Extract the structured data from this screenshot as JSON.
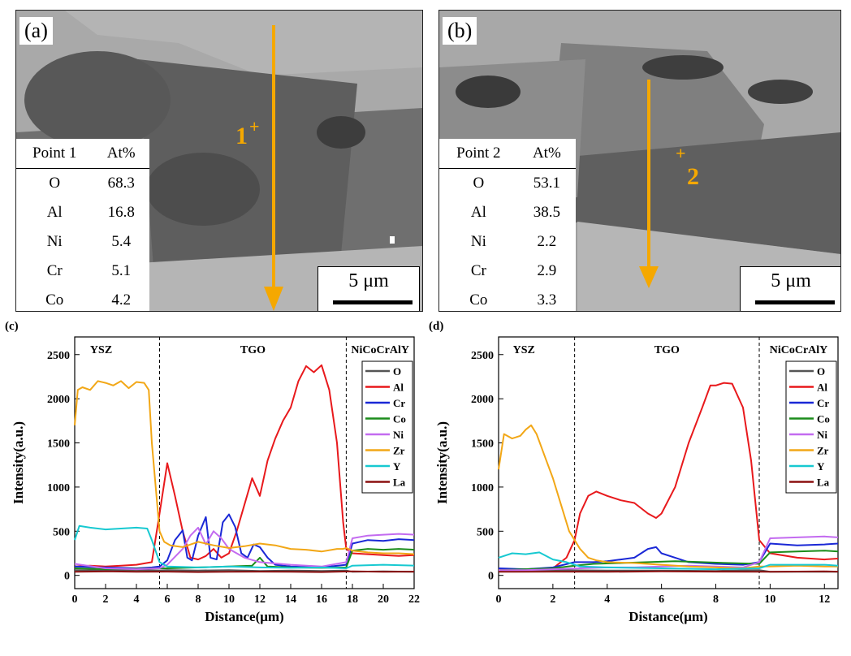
{
  "panel_a": {
    "tag": "(a)",
    "point_label": "1",
    "table": {
      "header": [
        "Point 1",
        "At%"
      ],
      "rows": [
        [
          "O",
          "68.3"
        ],
        [
          "Al",
          "16.8"
        ],
        [
          "Ni",
          "5.4"
        ],
        [
          "Cr",
          "5.1"
        ],
        [
          "Co",
          "4.2"
        ]
      ]
    },
    "scale": "5 μm"
  },
  "panel_b": {
    "tag": "(b)",
    "point_label": "2",
    "table": {
      "header": [
        "Point  2",
        "At%"
      ],
      "rows": [
        [
          "O",
          "53.1"
        ],
        [
          "Al",
          "38.5"
        ],
        [
          "Ni",
          "2.2"
        ],
        [
          "Cr",
          "2.9"
        ],
        [
          "Co",
          "3.3"
        ]
      ]
    },
    "scale": "5 μm"
  },
  "colors": {
    "O": "#555555",
    "Al": "#e8191c",
    "Cr": "#1a28d6",
    "Co": "#1b8c1b",
    "Ni": "#c36bf0",
    "Zr": "#f2a716",
    "Y": "#17c9d1",
    "La": "#8b1010",
    "arrow": "#f5a800"
  },
  "chart_data": [
    {
      "type": "line",
      "tag": "(c)",
      "xlabel": "Distance(μm)",
      "ylabel": "Intensity(a.u.)",
      "xlim": [
        0,
        22
      ],
      "ylim": [
        -150,
        2700
      ],
      "xticks": [
        0,
        2,
        4,
        6,
        8,
        10,
        12,
        14,
        16,
        18,
        20,
        22
      ],
      "yticks": [
        0,
        500,
        1000,
        1500,
        2000,
        2500
      ],
      "regions": [
        "YSZ",
        "TGO",
        "NiCoCrAlY"
      ],
      "region_bounds": [
        5.5,
        17.6
      ],
      "legend": [
        "O",
        "Al",
        "Cr",
        "Co",
        "Ni",
        "Zr",
        "Y",
        "La"
      ],
      "series": [
        {
          "name": "O",
          "x": [
            0,
            2,
            4,
            5.5,
            6,
            8,
            10,
            12,
            14,
            16,
            17.6,
            18,
            20,
            22
          ],
          "y": [
            60,
            55,
            60,
            55,
            60,
            55,
            60,
            50,
            55,
            50,
            55,
            40,
            45,
            40
          ]
        },
        {
          "name": "Al",
          "x": [
            0,
            1,
            2,
            3,
            4,
            5,
            5.5,
            6,
            6.5,
            7,
            7.5,
            8,
            8.5,
            9,
            9.5,
            10,
            10.5,
            11,
            11.5,
            12,
            12.5,
            13,
            13.5,
            14,
            14.5,
            15,
            15.5,
            16,
            16.5,
            17,
            17.4,
            17.6,
            18,
            19,
            20,
            21,
            22
          ],
          "y": [
            100,
            110,
            100,
            110,
            120,
            150,
            700,
            1270,
            900,
            500,
            200,
            180,
            220,
            300,
            200,
            250,
            500,
            800,
            1100,
            900,
            1300,
            1550,
            1750,
            1900,
            2200,
            2370,
            2300,
            2380,
            2100,
            1500,
            600,
            300,
            250,
            240,
            230,
            220,
            230
          ]
        },
        {
          "name": "Cr",
          "x": [
            0,
            2,
            4,
            5,
            5.5,
            6,
            6.5,
            7,
            7.3,
            7.6,
            8,
            8.5,
            8.8,
            9.2,
            9.6,
            10,
            10.4,
            10.8,
            11.2,
            11.6,
            12,
            12.5,
            13,
            14,
            16,
            17.6,
            18,
            19,
            20,
            21,
            22
          ],
          "y": [
            100,
            90,
            80,
            90,
            100,
            170,
            400,
            510,
            200,
            170,
            450,
            660,
            200,
            180,
            600,
            690,
            550,
            250,
            200,
            350,
            320,
            200,
            120,
            100,
            90,
            120,
            360,
            400,
            390,
            410,
            400
          ]
        },
        {
          "name": "Co",
          "x": [
            0,
            2,
            4,
            6,
            8,
            10,
            11.5,
            12,
            12.5,
            14,
            16,
            17.6,
            18,
            19,
            20,
            21,
            22
          ],
          "y": [
            80,
            70,
            75,
            80,
            90,
            100,
            110,
            200,
            100,
            90,
            85,
            90,
            280,
            300,
            290,
            300,
            290
          ]
        },
        {
          "name": "Ni",
          "x": [
            0,
            2,
            4,
            5.5,
            6,
            7,
            7.5,
            8,
            8.5,
            9,
            9.5,
            10,
            11,
            12,
            14,
            16,
            17.6,
            18,
            19,
            20,
            21,
            22
          ],
          "y": [
            130,
            80,
            70,
            80,
            120,
            300,
            450,
            540,
            350,
            500,
            420,
            300,
            200,
            150,
            120,
            100,
            150,
            420,
            450,
            460,
            470,
            460
          ]
        },
        {
          "name": "Zr",
          "x": [
            0,
            0.2,
            0.5,
            1,
            1.5,
            2,
            2.5,
            3,
            3.5,
            4,
            4.5,
            4.8,
            5,
            5.3,
            5.5,
            5.8,
            6.2,
            7,
            8,
            9,
            10,
            11,
            12,
            13,
            14,
            15,
            16,
            17,
            17.4,
            17.6,
            18,
            19,
            20,
            21,
            22
          ],
          "y": [
            1700,
            2100,
            2130,
            2100,
            2200,
            2180,
            2150,
            2200,
            2120,
            2190,
            2180,
            2100,
            1500,
            900,
            500,
            380,
            340,
            320,
            380,
            340,
            310,
            330,
            360,
            340,
            300,
            290,
            270,
            300,
            300,
            310,
            280,
            260,
            250,
            250,
            240
          ]
        },
        {
          "name": "Y",
          "x": [
            0,
            0.3,
            1,
            2,
            3,
            4,
            4.7,
            5,
            5.5,
            6,
            8,
            10,
            12,
            14,
            16,
            17.6,
            18,
            20,
            22
          ],
          "y": [
            400,
            560,
            540,
            520,
            530,
            540,
            530,
            400,
            150,
            100,
            90,
            100,
            90,
            85,
            90,
            80,
            110,
            120,
            110
          ]
        },
        {
          "name": "La",
          "x": [
            0,
            2,
            4,
            6,
            8,
            10,
            12,
            14,
            16,
            18,
            20,
            22
          ],
          "y": [
            40,
            45,
            40,
            42,
            38,
            40,
            42,
            40,
            38,
            45,
            40,
            42
          ]
        }
      ]
    },
    {
      "type": "line",
      "tag": "(d)",
      "xlabel": "Distance(μm)",
      "ylabel": "Intensity(a.u.)",
      "xlim": [
        0,
        12.5
      ],
      "ylim": [
        -150,
        2700
      ],
      "xticks": [
        0,
        2,
        4,
        6,
        8,
        10,
        12
      ],
      "yticks": [
        0,
        500,
        1000,
        1500,
        2000,
        2500
      ],
      "regions": [
        "YSZ",
        "TGO",
        "NiCoCrAlY"
      ],
      "region_bounds": [
        2.8,
        9.6
      ],
      "legend": [
        "O",
        "Al",
        "Cr",
        "Co",
        "Ni",
        "Zr",
        "Y",
        "La"
      ],
      "series": [
        {
          "name": "O",
          "x": [
            0,
            2,
            4,
            6,
            8,
            9.6,
            10,
            12,
            12.5
          ],
          "y": [
            60,
            60,
            55,
            55,
            50,
            60,
            40,
            40,
            40
          ]
        },
        {
          "name": "Al",
          "x": [
            0,
            1,
            2,
            2.5,
            2.8,
            3,
            3.3,
            3.6,
            4,
            4.5,
            5,
            5.5,
            5.8,
            6,
            6.5,
            7,
            7.5,
            7.8,
            8,
            8.3,
            8.6,
            9,
            9.3,
            9.6,
            10,
            11,
            12,
            12.5
          ],
          "y": [
            60,
            70,
            80,
            200,
            400,
            700,
            900,
            950,
            900,
            850,
            820,
            700,
            650,
            700,
            1000,
            1500,
            1900,
            2150,
            2150,
            2180,
            2170,
            1900,
            1300,
            400,
            250,
            200,
            180,
            190
          ]
        },
        {
          "name": "Cr",
          "x": [
            0,
            1,
            2,
            2.8,
            3.5,
            4,
            4.5,
            5,
            5.5,
            5.8,
            6,
            6.5,
            7,
            8,
            9,
            9.6,
            10,
            11,
            12,
            12.5
          ],
          "y": [
            80,
            70,
            90,
            150,
            150,
            160,
            180,
            200,
            300,
            320,
            250,
            200,
            150,
            130,
            120,
            150,
            360,
            340,
            350,
            360
          ]
        },
        {
          "name": "Co",
          "x": [
            0,
            1,
            2,
            2.8,
            3.5,
            4.5,
            5.5,
            6.5,
            7.5,
            8.5,
            9.6,
            10,
            11,
            12,
            12.5
          ],
          "y": [
            60,
            70,
            80,
            110,
            130,
            140,
            150,
            160,
            150,
            140,
            130,
            260,
            270,
            280,
            270
          ]
        },
        {
          "name": "Ni",
          "x": [
            0,
            1,
            2,
            3,
            4,
            5,
            6,
            7,
            8,
            9,
            9.6,
            10,
            11,
            12,
            12.5
          ],
          "y": [
            60,
            60,
            70,
            80,
            90,
            90,
            100,
            110,
            100,
            90,
            150,
            420,
            430,
            440,
            430
          ]
        },
        {
          "name": "Zr",
          "x": [
            0,
            0.2,
            0.5,
            0.8,
            1,
            1.2,
            1.4,
            1.7,
            2,
            2.3,
            2.6,
            2.8,
            3,
            3.3,
            3.6,
            4,
            5,
            6,
            7,
            8,
            9,
            9.6,
            10,
            11,
            12,
            12.5
          ],
          "y": [
            1200,
            1600,
            1550,
            1580,
            1650,
            1700,
            1600,
            1350,
            1100,
            800,
            500,
            400,
            300,
            200,
            170,
            150,
            140,
            120,
            100,
            90,
            80,
            100,
            100,
            110,
            100,
            100
          ]
        },
        {
          "name": "Y",
          "x": [
            0,
            0.5,
            1,
            1.5,
            2,
            2.5,
            2.8,
            3,
            4,
            6,
            8,
            9.6,
            10,
            12,
            12.5
          ],
          "y": [
            200,
            250,
            240,
            260,
            180,
            150,
            120,
            100,
            90,
            80,
            70,
            80,
            120,
            120,
            110
          ]
        },
        {
          "name": "La",
          "x": [
            0,
            2,
            4,
            6,
            8,
            10,
            12,
            12.5
          ],
          "y": [
            40,
            42,
            40,
            45,
            42,
            40,
            45,
            42
          ]
        }
      ]
    }
  ]
}
